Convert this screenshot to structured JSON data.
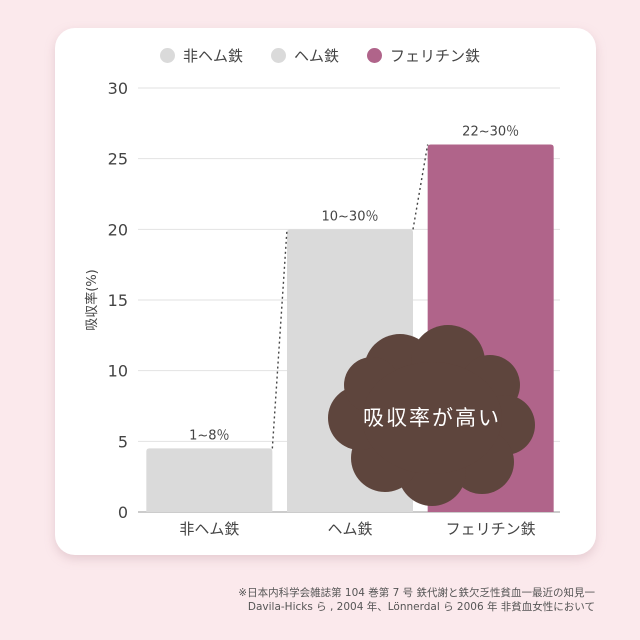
{
  "chart_data": {
    "type": "bar",
    "categories": [
      "非ヘム鉄",
      "ヘム鉄",
      "フェリチン鉄"
    ],
    "values": [
      4.5,
      20,
      26
    ],
    "data_labels": [
      "1~8％",
      "10~30％",
      "22~30％"
    ],
    "colors": [
      "#dadada",
      "#dadada",
      "#b0648a"
    ],
    "legend": [
      {
        "label": "非ヘム鉄",
        "color": "#dadada"
      },
      {
        "label": "ヘム鉄",
        "color": "#dadada"
      },
      {
        "label": "フェリチン鉄",
        "color": "#b0648a"
      }
    ],
    "legend_position": "top-center",
    "ylabel": "吸収率(%)",
    "xlabel": "",
    "ylim": [
      0,
      30
    ],
    "yticks": [
      "0",
      "5",
      "10",
      "15",
      "20",
      "25",
      "30"
    ],
    "grid": true,
    "annotation": "吸収率が高い",
    "annotation_color": "#5e453d"
  },
  "footnote": {
    "line1": "※日本内科学会雑誌第 104 巻第 7 号 鉄代謝と鉄欠乏性貧血一最近の知見一",
    "line2": "Davila-Hicks ら , 2004 年、Lönnerdal ら 2006 年 非貧血女性において"
  }
}
